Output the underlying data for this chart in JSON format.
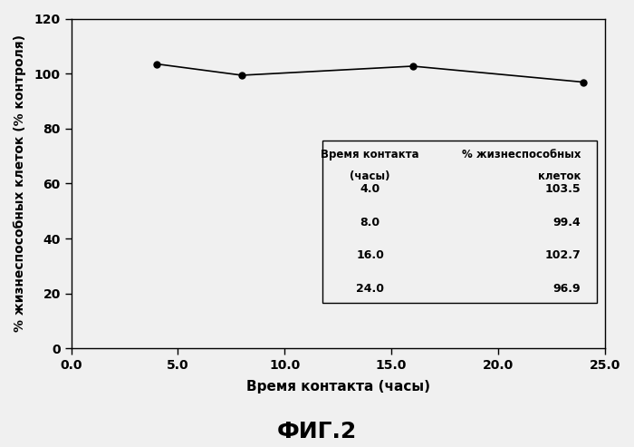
{
  "x": [
    4.0,
    8.0,
    16.0,
    24.0
  ],
  "y": [
    103.5,
    99.4,
    102.7,
    96.9
  ],
  "xlim": [
    0.0,
    25.0
  ],
  "ylim": [
    0,
    120
  ],
  "xticks": [
    0.0,
    5.0,
    10.0,
    15.0,
    20.0,
    25.0
  ],
  "yticks": [
    0,
    20,
    40,
    60,
    80,
    100,
    120
  ],
  "xlabel": "Время контакта (часы)",
  "ylabel": "% жизнеспособных клеток (% контроля)",
  "figure_label": "ФИГ.2",
  "line_color": "#000000",
  "marker": "o",
  "marker_size": 5,
  "marker_facecolor": "#000000",
  "line_width": 1.2,
  "background_color": "#f0f0f0",
  "table_data": [
    [
      "4.0",
      "103.5"
    ],
    [
      "8.0",
      "99.4"
    ],
    [
      "16.0",
      "102.7"
    ],
    [
      "24.0",
      "96.9"
    ]
  ]
}
